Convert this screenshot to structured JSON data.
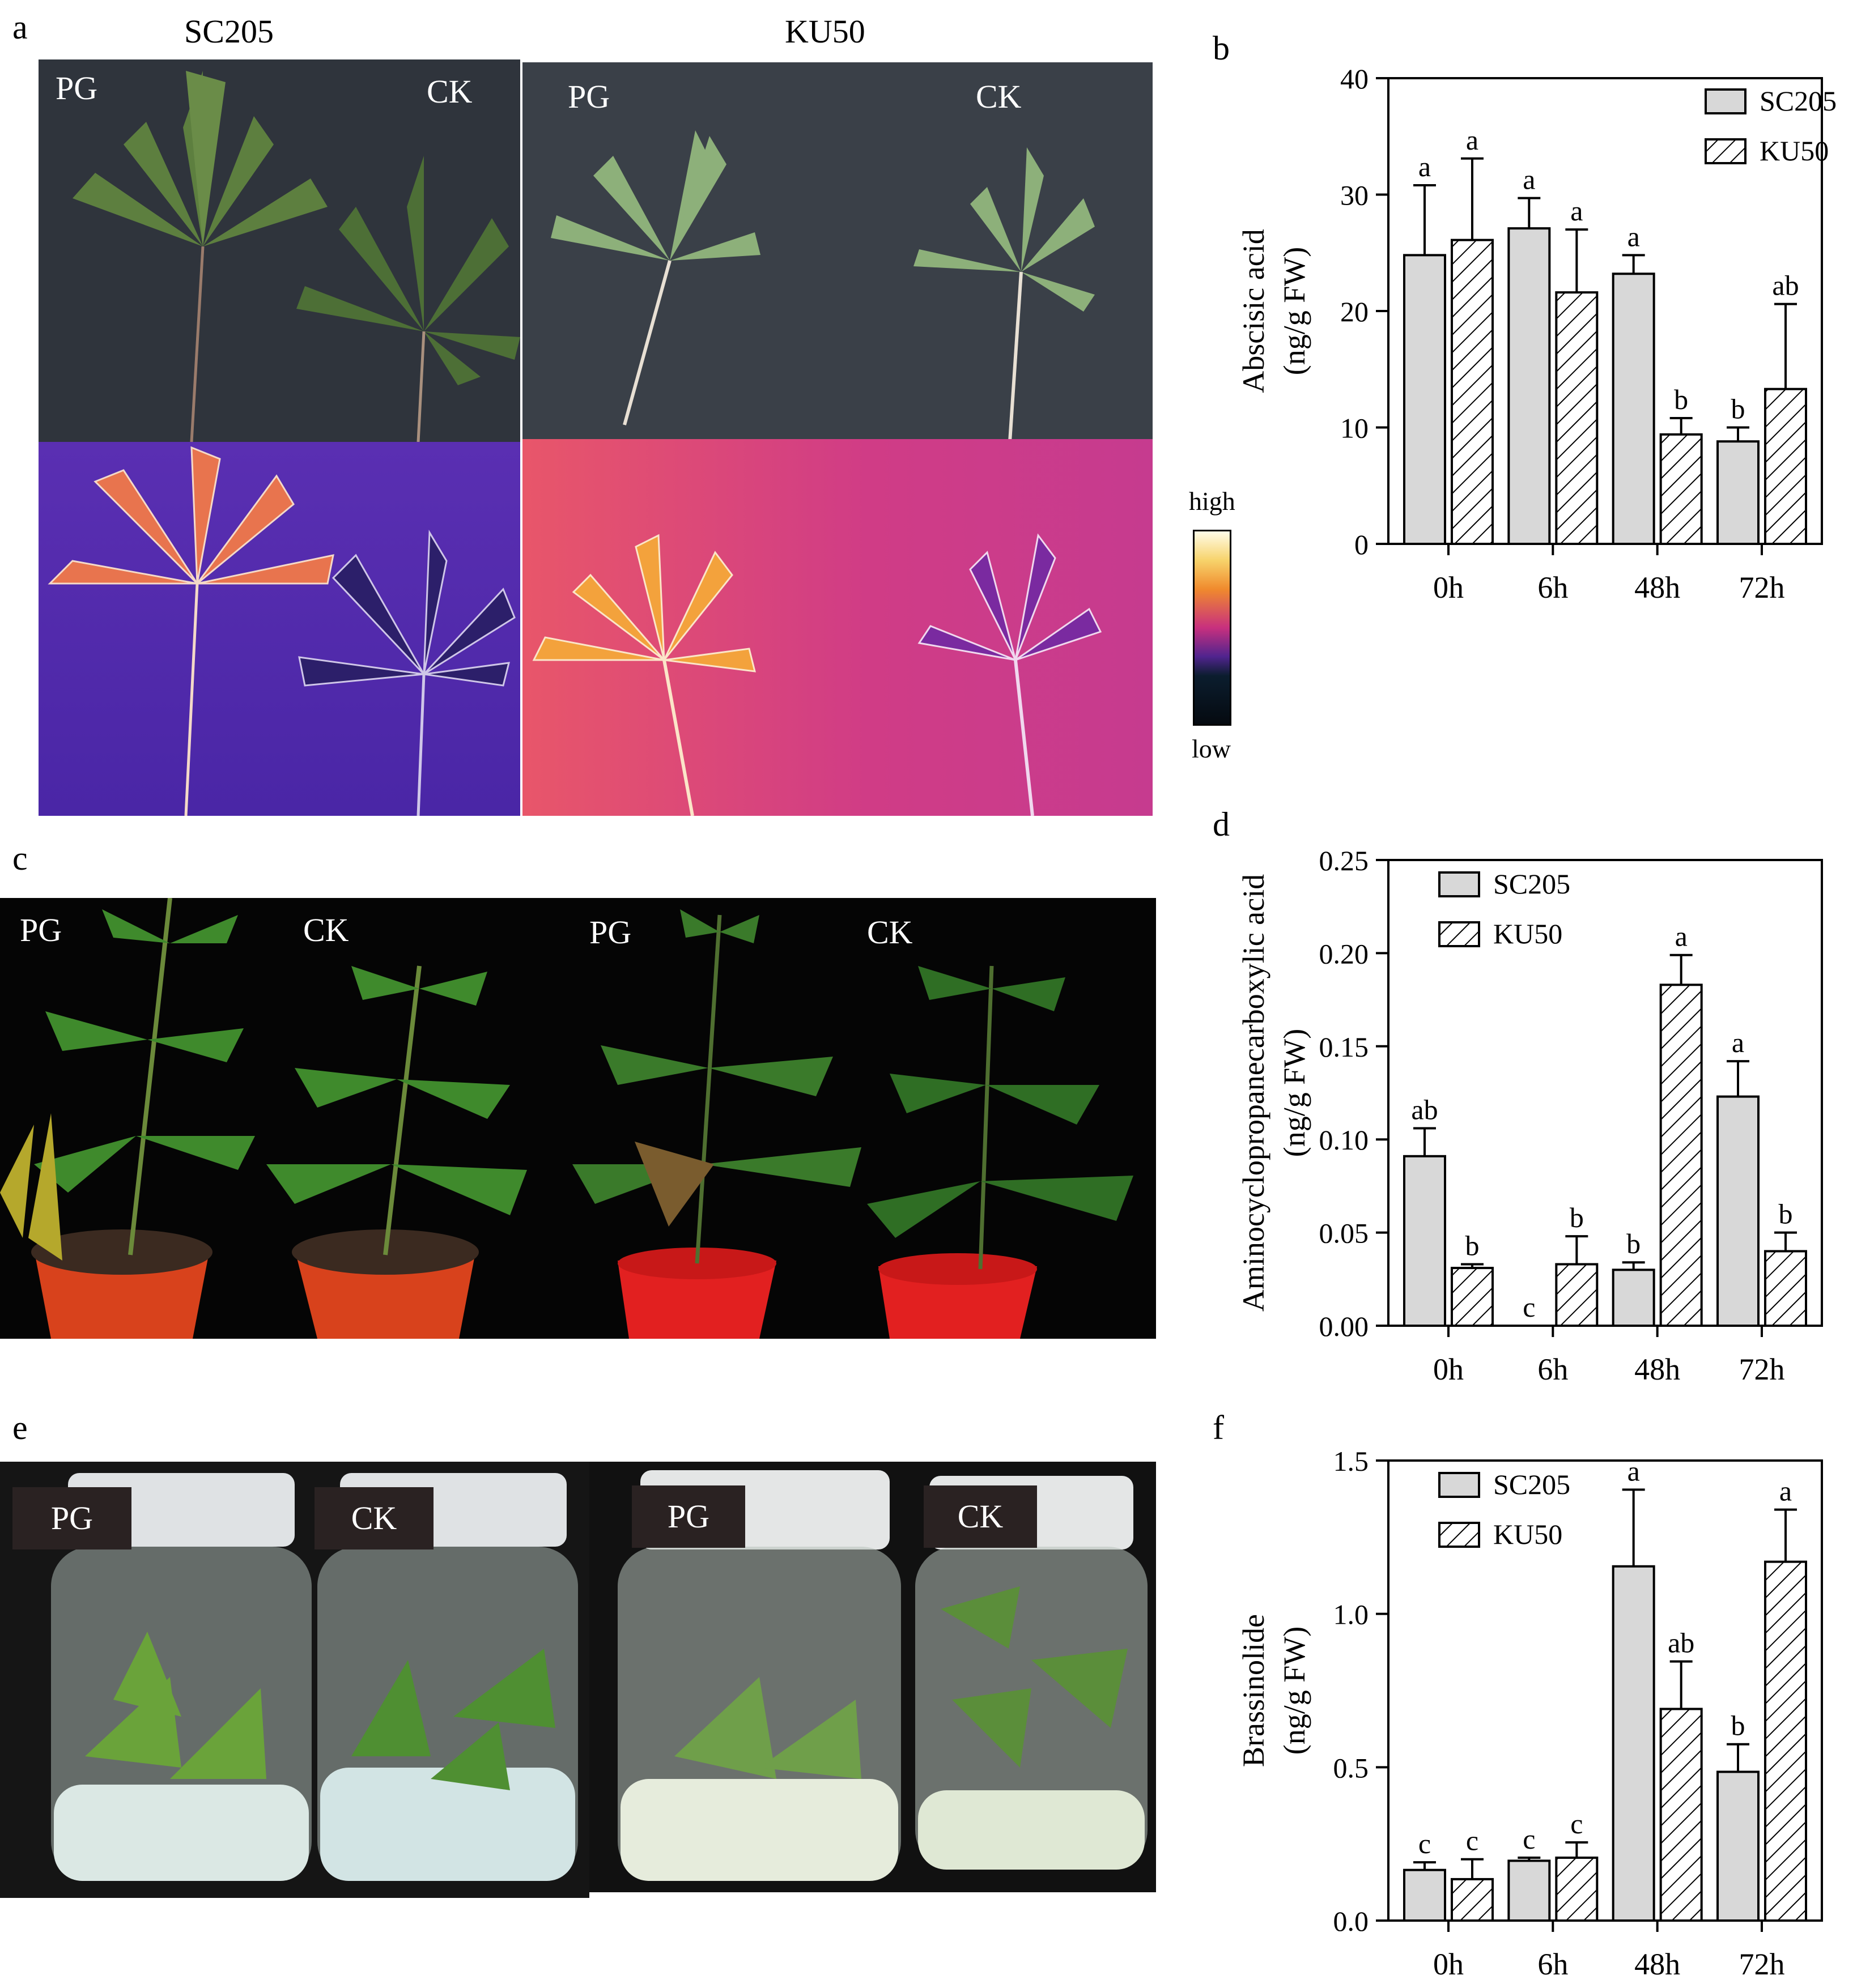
{
  "figure": {
    "panel_letters": {
      "a": "a",
      "b": "b",
      "c": "c",
      "d": "d",
      "e": "e",
      "f": "f"
    },
    "panel_a": {
      "left_title": "SC205",
      "right_title": "KU50",
      "labels": {
        "pg": "PG",
        "ck": "CK"
      },
      "colorbar": {
        "high": "high",
        "low": "low"
      }
    },
    "panel_c": {
      "labels": {
        "pg": "PG",
        "ck": "CK"
      }
    },
    "panel_e": {
      "labels": {
        "pg": "PG",
        "ck": "CK"
      }
    }
  },
  "chart_data": [
    {
      "id": "b",
      "type": "bar",
      "categories": [
        "0h",
        "6h",
        "48h",
        "72h"
      ],
      "series": [
        {
          "name": "SC205",
          "values": [
            24.8,
            27.1,
            23.2,
            8.8
          ],
          "errors": [
            6.0,
            2.6,
            1.6,
            1.2
          ],
          "letters": [
            "a",
            "a",
            "a",
            "b"
          ],
          "pattern": "solid"
        },
        {
          "name": "KU50",
          "values": [
            26.1,
            21.6,
            9.4,
            13.3
          ],
          "errors": [
            7.0,
            5.4,
            1.4,
            7.3
          ],
          "letters": [
            "a",
            "a",
            "b",
            "ab"
          ],
          "pattern": "hatch"
        }
      ],
      "ylabel": "Abscisic acid",
      "yunit": "(ng/g FW)",
      "ylim": [
        0,
        40
      ],
      "yticks": [
        "0",
        "10",
        "20",
        "30",
        "40"
      ],
      "legend": "top-right"
    },
    {
      "id": "d",
      "type": "bar",
      "categories": [
        "0h",
        "6h",
        "48h",
        "72h"
      ],
      "series": [
        {
          "name": "SC205",
          "values": [
            0.091,
            0.0,
            0.03,
            0.123
          ],
          "errors": [
            0.015,
            0.0,
            0.004,
            0.019
          ],
          "letters": [
            "ab",
            "c",
            "b",
            "a"
          ],
          "pattern": "solid"
        },
        {
          "name": "KU50",
          "values": [
            0.031,
            0.033,
            0.183,
            0.04
          ],
          "errors": [
            0.002,
            0.015,
            0.016,
            0.01
          ],
          "letters": [
            "b",
            "b",
            "a",
            "b"
          ],
          "pattern": "hatch"
        }
      ],
      "ylabel": "Aminocyclopropanecarboxylic acid",
      "yunit": "(ng/g FW)",
      "ylim": [
        0,
        0.25
      ],
      "yticks": [
        "0.00",
        "0.05",
        "0.10",
        "0.15",
        "0.20",
        "0.25"
      ],
      "legend": "top-left"
    },
    {
      "id": "f",
      "type": "bar",
      "categories": [
        "0h",
        "6h",
        "48h",
        "72h"
      ],
      "series": [
        {
          "name": "SC205",
          "values": [
            0.165,
            0.195,
            1.155,
            0.485
          ],
          "errors": [
            0.025,
            0.01,
            0.25,
            0.09
          ],
          "letters": [
            "c",
            "c",
            "a",
            "b"
          ],
          "pattern": "solid"
        },
        {
          "name": "KU50",
          "values": [
            0.135,
            0.205,
            0.69,
            1.17
          ],
          "errors": [
            0.065,
            0.05,
            0.155,
            0.17
          ],
          "letters": [
            "c",
            "c",
            "ab",
            "a"
          ],
          "pattern": "hatch"
        }
      ],
      "ylabel": "Brassinolide",
      "yunit": "(ng/g FW)",
      "ylim": [
        0,
        1.5
      ],
      "yticks": [
        "0.0",
        "0.5",
        "1.0",
        "1.5"
      ],
      "legend": "top-left"
    }
  ]
}
